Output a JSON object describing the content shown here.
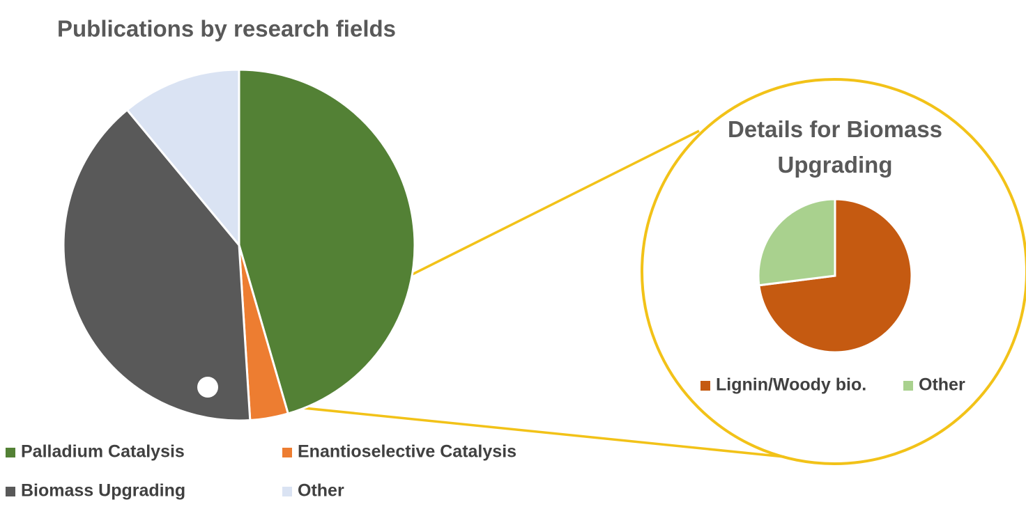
{
  "chart_data": [
    {
      "type": "pie",
      "title": "Publications by research fields",
      "categories": [
        "Palladium Catalysis",
        "Enantioselective Catalysis",
        "Biomass Upgrading",
        "Other"
      ],
      "values": [
        45.5,
        3.5,
        40,
        11
      ],
      "colors": [
        "#538135",
        "#ed7d31",
        "#595959",
        "#dae3f3"
      ]
    },
    {
      "type": "pie",
      "title": "Details for Biomass Upgrading",
      "categories": [
        "Lignin/Woody bio.",
        "Other"
      ],
      "values": [
        73,
        27
      ],
      "colors": [
        "#c55a11",
        "#a9d18e"
      ]
    }
  ]
}
